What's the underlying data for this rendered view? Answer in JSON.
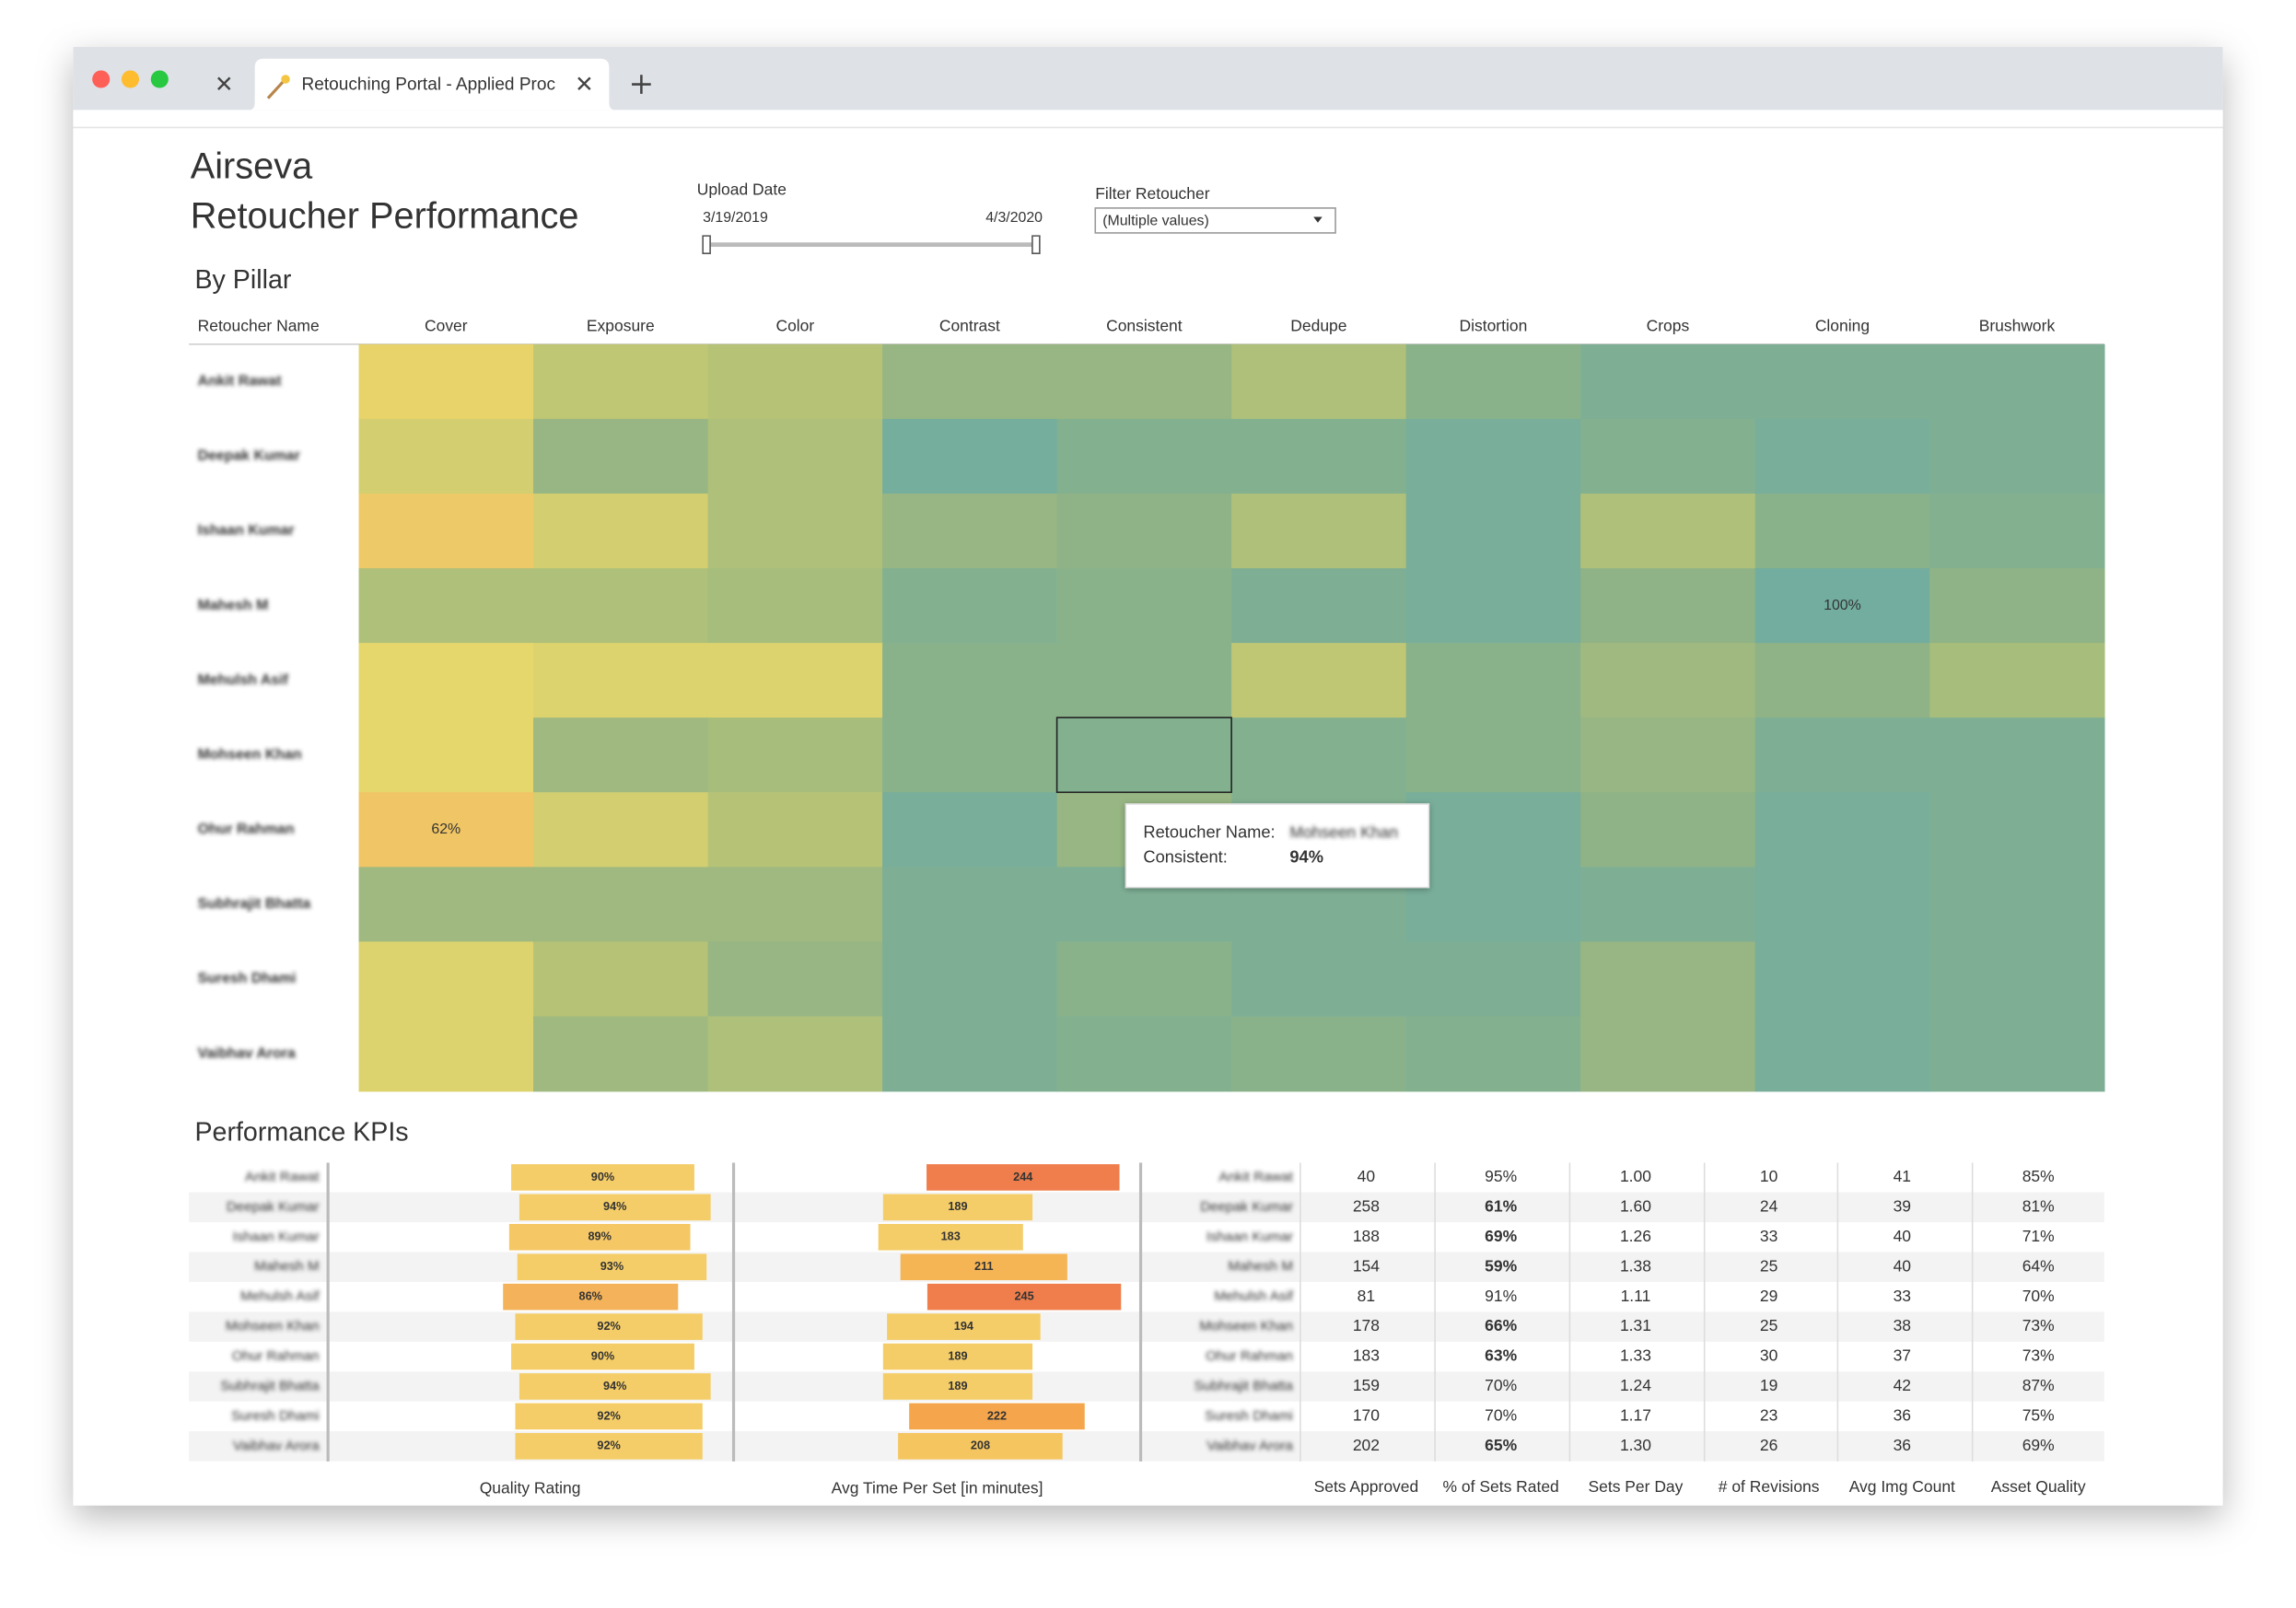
{
  "browser": {
    "tab_title": "Retouching Portal - Applied Proc"
  },
  "header": {
    "title": "Airseva",
    "subtitle": "Retoucher Performance"
  },
  "filters": {
    "upload_date": {
      "label": "Upload Date",
      "start": "3/19/2019",
      "end": "4/3/2020"
    },
    "retoucher": {
      "label": "Filter Retoucher",
      "value": "(Multiple values)"
    }
  },
  "kpi_title": "Performance KPIs",
  "chart_data": [
    {
      "type": "heatmap",
      "title": "By Pillar",
      "row_header": "Retoucher Name",
      "columns": [
        "Cover",
        "Exposure",
        "Color",
        "Contrast",
        "Consistent",
        "Dedupe",
        "Distortion",
        "Crops",
        "Cloning",
        "Brushwork"
      ],
      "rows": [
        "Ankit Rawat",
        "Deepak Kumar",
        "Ishaan Kumar",
        "Mahesh M",
        "Mehulsh Asif",
        "Mohseen Khan",
        "Ohur Rahman",
        "Subhrajit Bhatta",
        "Suresh Dhami",
        "Vaibhav Arora"
      ],
      "values": [
        [
          68,
          78,
          80,
          88,
          88,
          82,
          92,
          96,
          96,
          96
        ],
        [
          74,
          88,
          82,
          99,
          94,
          94,
          98,
          94,
          98,
          96
        ],
        [
          64,
          74,
          82,
          88,
          90,
          82,
          98,
          82,
          92,
          94
        ],
        [
          82,
          82,
          84,
          94,
          92,
          96,
          98,
          90,
          100,
          90
        ],
        [
          70,
          72,
          72,
          92,
          92,
          78,
          92,
          86,
          90,
          84
        ],
        [
          70,
          86,
          84,
          92,
          94,
          94,
          92,
          88,
          96,
          96
        ],
        [
          62,
          74,
          80,
          98,
          88,
          94,
          98,
          90,
          98,
          96
        ],
        [
          86,
          86,
          86,
          96,
          96,
          96,
          98,
          96,
          98,
          96
        ],
        [
          72,
          80,
          88,
          96,
          92,
          96,
          96,
          88,
          98,
          96
        ],
        [
          72,
          86,
          82,
          96,
          94,
          92,
          94,
          88,
          98,
          96
        ]
      ],
      "value_labels": [
        [
          null,
          null,
          null,
          null,
          null,
          null,
          null,
          null,
          null,
          null
        ],
        [
          null,
          null,
          null,
          null,
          null,
          null,
          null,
          null,
          null,
          null
        ],
        [
          null,
          null,
          null,
          null,
          null,
          null,
          null,
          null,
          null,
          null
        ],
        [
          null,
          null,
          null,
          null,
          null,
          null,
          null,
          null,
          "100%",
          null
        ],
        [
          null,
          null,
          null,
          null,
          null,
          null,
          null,
          null,
          null,
          null
        ],
        [
          null,
          null,
          null,
          null,
          null,
          null,
          null,
          null,
          null,
          null
        ],
        [
          "62%",
          null,
          null,
          null,
          null,
          null,
          null,
          null,
          null,
          null
        ],
        [
          null,
          null,
          null,
          null,
          null,
          null,
          null,
          null,
          null,
          null
        ],
        [
          null,
          null,
          null,
          null,
          null,
          null,
          null,
          null,
          null,
          null
        ],
        [
          null,
          null,
          null,
          null,
          null,
          null,
          null,
          null,
          null,
          null
        ]
      ],
      "color_range": [
        60,
        100
      ],
      "colors": [
        "#f2c063",
        "#e6d76c",
        "#b6c376",
        "#8fb386",
        "#72ad9f"
      ],
      "tooltip": {
        "name_label": "Retoucher Name:",
        "name": "Mohseen Khan",
        "value_label": "Consistent:",
        "value": "94%"
      }
    },
    {
      "type": "bar",
      "x_label": "Quality Rating",
      "values": [
        90,
        94,
        89,
        93,
        86,
        92,
        90,
        94,
        92,
        92
      ],
      "value_labels": [
        "90%",
        "94%",
        "89%",
        "93%",
        "86%",
        "92%",
        "90%",
        "94%",
        "92%",
        "92%"
      ],
      "colors": [
        "#f5cd68",
        "#f5cd68",
        "#f5c765",
        "#f5cd68",
        "#f4b35a",
        "#f5cd68",
        "#f5cd68",
        "#f5cd68",
        "#f5cd68",
        "#f5cd68"
      ]
    },
    {
      "type": "bar",
      "x_label": "Avg Time Per Set [in minutes]",
      "values": [
        244,
        189,
        183,
        211,
        245,
        194,
        189,
        189,
        222,
        208
      ],
      "colors": [
        "#ef7e4c",
        "#f5cd68",
        "#f5cd68",
        "#f5b555",
        "#ef7e4c",
        "#f5cd68",
        "#f5cd68",
        "#f5cd68",
        "#f5a64c",
        "#f5c560"
      ]
    }
  ],
  "kpi_table": {
    "columns": [
      "Sets Approved",
      "% of Sets Rated",
      "Sets Per Day",
      "# of Revisions",
      "Avg Img Count",
      "Asset Quality"
    ],
    "column_colors": [
      "#333333",
      "#f2a33a",
      "#f0a04b",
      "#cc3d4f",
      "#333333",
      "#f5b24a"
    ],
    "rows": [
      [
        "40",
        "95%",
        "1.00",
        "10",
        "41",
        "85%"
      ],
      [
        "258",
        "61%",
        "1.60",
        "24",
        "39",
        "81%"
      ],
      [
        "188",
        "69%",
        "1.26",
        "33",
        "40",
        "71%"
      ],
      [
        "154",
        "59%",
        "1.38",
        "25",
        "40",
        "64%"
      ],
      [
        "81",
        "91%",
        "1.11",
        "29",
        "33",
        "70%"
      ],
      [
        "178",
        "66%",
        "1.31",
        "25",
        "38",
        "73%"
      ],
      [
        "183",
        "63%",
        "1.33",
        "30",
        "37",
        "73%"
      ],
      [
        "159",
        "70%",
        "1.24",
        "19",
        "42",
        "87%"
      ],
      [
        "170",
        "70%",
        "1.17",
        "23",
        "36",
        "75%"
      ],
      [
        "202",
        "65%",
        "1.30",
        "26",
        "36",
        "69%"
      ]
    ]
  }
}
